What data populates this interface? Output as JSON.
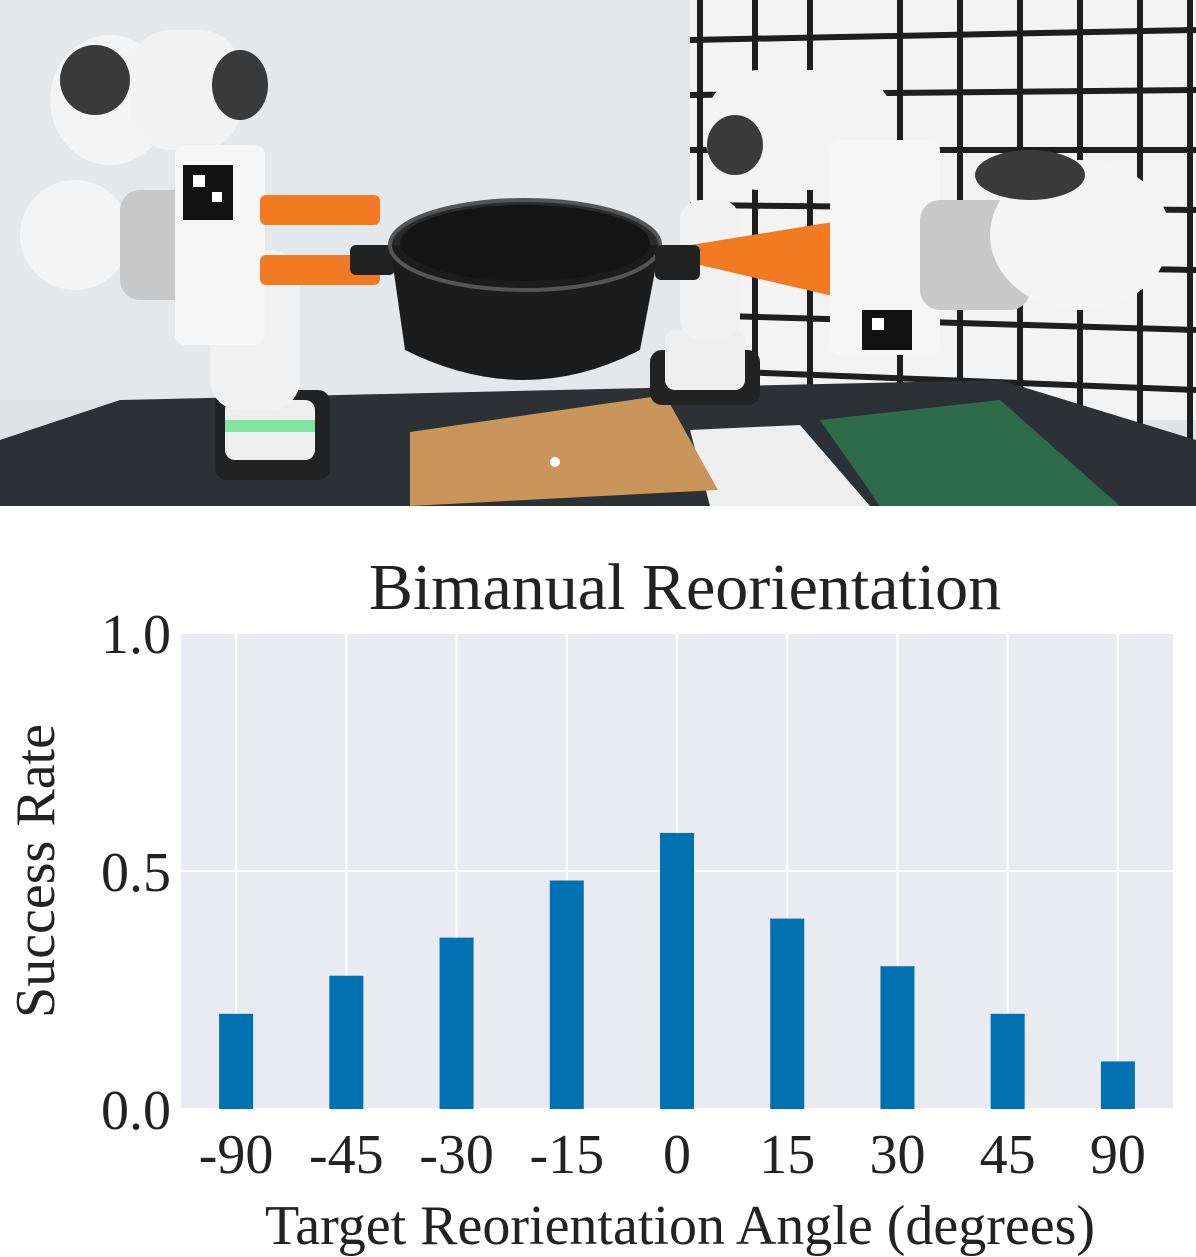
{
  "photo": {
    "description_icon": "robot-arms-holding-pot-photo"
  },
  "chart_data": {
    "type": "bar",
    "title": "Bimanual Reorientation",
    "xlabel": "Target Reorientation Angle (degrees)",
    "ylabel": "Success Rate",
    "categories": [
      "-90",
      "-45",
      "-30",
      "-15",
      "0",
      "15",
      "30",
      "45",
      "90"
    ],
    "values": [
      0.2,
      0.28,
      0.36,
      0.48,
      0.58,
      0.4,
      0.3,
      0.2,
      0.1
    ],
    "ylim": [
      0,
      1.0
    ],
    "yticks": [
      "0.0",
      "0.5",
      "1.0"
    ],
    "grid": true,
    "colors": {
      "bar": "#0072b2",
      "plot_bg": "#eaeaf2",
      "grid": "#ffffff"
    }
  }
}
